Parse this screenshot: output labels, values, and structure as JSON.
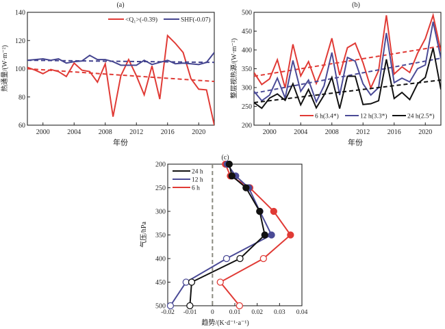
{
  "chart_data": [
    {
      "id": "a",
      "panel_label": "(a)",
      "type": "line",
      "xlabel": "年份",
      "ylabel": "热通量/(W·m⁻²)",
      "xlim": [
        1998,
        2022
      ],
      "ylim": [
        60,
        140
      ],
      "xticks": [
        2000,
        2004,
        2008,
        2012,
        2016,
        2020
      ],
      "yticks": [
        60,
        80,
        100,
        120,
        140
      ],
      "legend_position": "top-right",
      "x": [
        1998,
        1999,
        2000,
        2001,
        2002,
        2003,
        2004,
        2005,
        2006,
        2007,
        2008,
        2009,
        2010,
        2011,
        2012,
        2013,
        2014,
        2015,
        2016,
        2017,
        2018,
        2019,
        2020,
        2021,
        2022
      ],
      "series": [
        {
          "name": "<Q₁>(-0.39)",
          "color": "#e03a35",
          "values": [
            101,
            99,
            96.5,
            99.5,
            98,
            94.5,
            104,
            99,
            98,
            90.5,
            103.5,
            66,
            95,
            106.5,
            95,
            81.5,
            102,
            78.5,
            123.5,
            118,
            111.5,
            93,
            85.5,
            85,
            60
          ],
          "trend": [
            100,
            91
          ]
        },
        {
          "name": "SHF(-0.07)",
          "color": "#44448f",
          "values": [
            106,
            106.5,
            107,
            106,
            107,
            104,
            105,
            105.5,
            109.5,
            106.5,
            106.5,
            105,
            102.5,
            102.5,
            102.5,
            106,
            103,
            104.5,
            106,
            103.5,
            104,
            103.5,
            103,
            104.5,
            111.5
          ],
          "trend": [
            106,
            104.5
          ]
        }
      ]
    },
    {
      "id": "b",
      "panel_label": "(b)",
      "type": "line",
      "xlabel": "年份",
      "ylabel": "整层视热源/(W·m⁻²)",
      "xlim": [
        1998,
        2022
      ],
      "ylim": [
        200,
        500
      ],
      "xticks": [
        2000,
        2004,
        2008,
        2012,
        2016,
        2020
      ],
      "yticks": [
        200,
        250,
        300,
        350,
        400,
        450,
        500
      ],
      "legend_position": "bottom-right",
      "x": [
        1998,
        1999,
        2000,
        2001,
        2002,
        2003,
        2004,
        2005,
        2006,
        2007,
        2008,
        2009,
        2010,
        2011,
        2012,
        2013,
        2014,
        2015,
        2016,
        2017,
        2018,
        2019,
        2020,
        2021,
        2022
      ],
      "series": [
        {
          "name": "6 h(3.4*)",
          "color": "#e03a35",
          "values": [
            340,
            308,
            323,
            374,
            299,
            415,
            331,
            369,
            311,
            360,
            431,
            333,
            406,
            418,
            366,
            299,
            345,
            492,
            336,
            355,
            340,
            391,
            430,
            492,
            397
          ],
          "trend": [
            330,
            410
          ]
        },
        {
          "name": "12 h(3.3*)",
          "color": "#4a4a96",
          "values": [
            290,
            265,
            280,
            325,
            272,
            372,
            290,
            320,
            262,
            305,
            393,
            280,
            380,
            370,
            310,
            280,
            300,
            445,
            313,
            325,
            315,
            350,
            360,
            475,
            378
          ],
          "trend": [
            285,
            378
          ]
        },
        {
          "name": "24 h(2.5*)",
          "color": "#111111",
          "values": [
            260,
            245,
            272,
            283,
            266,
            310,
            254,
            295,
            246,
            280,
            327,
            244,
            330,
            330,
            255,
            257,
            265,
            375,
            271,
            287,
            268,
            310,
            327,
            405,
            295
          ],
          "trend": [
            260,
            320
          ]
        }
      ]
    },
    {
      "id": "c",
      "panel_label": "(c)",
      "type": "line",
      "xlabel": "趋势/(K·d⁻¹·a⁻¹)",
      "ylabel": "气压/hPa",
      "xlim": [
        -0.02,
        0.04
      ],
      "ylim": [
        500,
        200
      ],
      "xticks": [
        -0.02,
        -0.01,
        0,
        0.01,
        0.02,
        0.03,
        0.04
      ],
      "xtick_labels": [
        "-0.02",
        "-0.01",
        "0",
        "0.01",
        "0.02",
        "0.03",
        "0.04"
      ],
      "yticks": [
        200,
        250,
        300,
        350,
        400,
        450,
        500
      ],
      "legend_position": "top-left",
      "zero_line": 0,
      "y": [
        200,
        225,
        250,
        300,
        350,
        400,
        450,
        500
      ],
      "filled_marker_levels": [
        200,
        225,
        250,
        300,
        350
      ],
      "open_marker_levels": [
        400,
        450,
        500
      ],
      "series": [
        {
          "name": "24 h",
          "color": "#111111",
          "values": [
            0.0075,
            0.0087,
            0.015,
            0.0211,
            0.0234,
            0.0123,
            -0.0093,
            -0.0101
          ]
        },
        {
          "name": "12 h",
          "color": "#4a4a96",
          "values": [
            0.0066,
            0.0104,
            0.0162,
            0.0212,
            0.0264,
            0.0063,
            -0.0118,
            -0.0188
          ]
        },
        {
          "name": "6 h",
          "color": "#e03a35",
          "values": [
            0.0058,
            0.008,
            0.0167,
            0.0274,
            0.0349,
            0.0228,
            0.0035,
            0.0121
          ]
        }
      ]
    }
  ]
}
